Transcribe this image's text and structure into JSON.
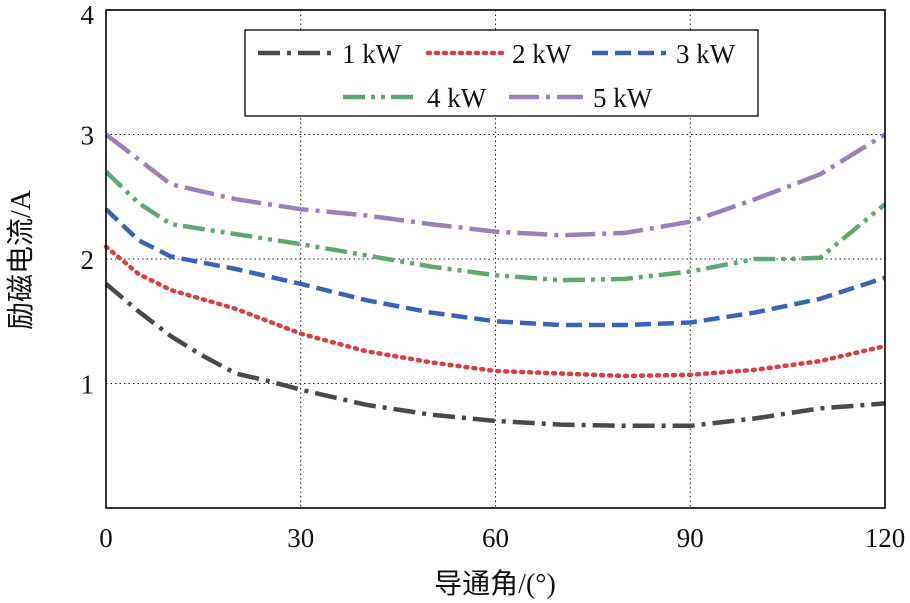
{
  "chart_data": {
    "type": "line",
    "xlabel": "导通角/(°)",
    "ylabel": "励磁电流/A",
    "xlim": [
      0,
      120
    ],
    "ylim": [
      0,
      4
    ],
    "xticks": [
      "0",
      "30",
      "60",
      "90",
      "120"
    ],
    "yticks": [
      "1",
      "2",
      "3",
      "4"
    ],
    "grid": true,
    "legend_position": "top-center",
    "series": [
      {
        "name": "1 kW",
        "color": "#4a4a4a",
        "style": "dash-dot",
        "x": [
          0,
          5,
          10,
          15,
          20,
          25,
          30,
          40,
          50,
          60,
          70,
          80,
          90,
          100,
          110,
          120
        ],
        "y": [
          1.8,
          1.58,
          1.38,
          1.22,
          1.08,
          1.02,
          0.95,
          0.83,
          0.75,
          0.7,
          0.67,
          0.66,
          0.66,
          0.72,
          0.8,
          0.84
        ]
      },
      {
        "name": "2 kW",
        "color": "#d84040",
        "style": "dotted",
        "x": [
          0,
          5,
          10,
          20,
          30,
          40,
          50,
          60,
          70,
          80,
          90,
          100,
          110,
          120
        ],
        "y": [
          2.1,
          1.88,
          1.75,
          1.6,
          1.4,
          1.26,
          1.17,
          1.1,
          1.08,
          1.06,
          1.07,
          1.11,
          1.18,
          1.3
        ]
      },
      {
        "name": "3 kW",
        "color": "#3a62b8",
        "style": "dashed",
        "x": [
          0,
          5,
          10,
          20,
          30,
          40,
          50,
          60,
          70,
          80,
          90,
          100,
          110,
          120
        ],
        "y": [
          2.4,
          2.15,
          2.02,
          1.92,
          1.8,
          1.67,
          1.57,
          1.5,
          1.47,
          1.47,
          1.49,
          1.57,
          1.68,
          1.85
        ]
      },
      {
        "name": "4 kW",
        "color": "#5fa876",
        "style": "dash-dot-dot",
        "x": [
          0,
          5,
          10,
          20,
          30,
          40,
          50,
          60,
          70,
          80,
          90,
          100,
          105,
          110,
          120
        ],
        "y": [
          2.7,
          2.45,
          2.28,
          2.2,
          2.12,
          2.03,
          1.94,
          1.87,
          1.83,
          1.84,
          1.9,
          2.0,
          2.0,
          2.01,
          2.44
        ]
      },
      {
        "name": "5 kW",
        "color": "#9b80bb",
        "style": "long-dash-dot",
        "x": [
          0,
          5,
          10,
          20,
          30,
          40,
          50,
          60,
          70,
          80,
          90,
          100,
          110,
          120
        ],
        "y": [
          3.0,
          2.8,
          2.6,
          2.48,
          2.4,
          2.35,
          2.28,
          2.22,
          2.19,
          2.21,
          2.3,
          2.48,
          2.68,
          3.0
        ]
      }
    ]
  }
}
